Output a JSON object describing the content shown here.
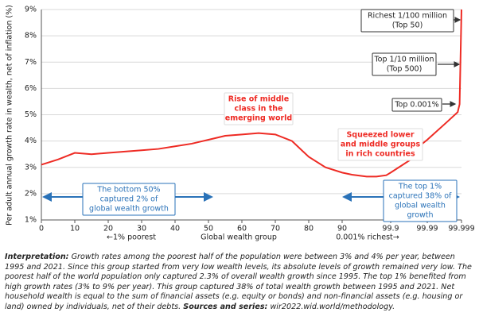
{
  "chart_data": {
    "type": "line",
    "ylabel": "Per adult annual growth rate in wealth, net of inflation (%)",
    "xlabel": "Global wealth group",
    "x_left_label": "←1% poorest",
    "x_right_label": "0.001% richest→",
    "x": [
      0,
      5,
      10,
      15,
      20,
      25,
      30,
      35,
      40,
      45,
      50,
      55,
      60,
      65,
      70,
      75,
      80,
      85,
      90,
      92,
      95,
      97,
      99,
      99.9,
      99.95,
      99.97,
      99.99,
      99.995,
      99.998,
      99.9985,
      99.999
    ],
    "values": [
      3.1,
      3.3,
      3.55,
      3.5,
      3.55,
      3.6,
      3.65,
      3.7,
      3.8,
      3.9,
      4.05,
      4.2,
      4.25,
      4.3,
      4.25,
      4.0,
      3.4,
      3.0,
      2.8,
      2.72,
      2.65,
      2.65,
      2.7,
      2.8,
      3.3,
      3.8,
      4.05,
      4.7,
      5.1,
      5.4,
      9
    ],
    "color": "#ee2b24",
    "ylim": [
      1,
      9
    ],
    "yticks": [
      {
        "value": 1,
        "label": "1%"
      },
      {
        "value": 2,
        "label": "2%"
      },
      {
        "value": 3,
        "label": "3%"
      },
      {
        "value": 4,
        "label": "4%"
      },
      {
        "value": 5,
        "label": "5%"
      },
      {
        "value": 6,
        "label": "6%"
      },
      {
        "value": 7,
        "label": "7%"
      },
      {
        "value": 8,
        "label": "8%"
      },
      {
        "value": 9,
        "label": "9%"
      }
    ],
    "xlim": [
      0,
      99.999
    ],
    "xticks": [
      0,
      10,
      20,
      30,
      40,
      50,
      60,
      70,
      80,
      90,
      99.9,
      99.99,
      99.999
    ],
    "grid": true,
    "annotations": [
      {
        "lines": [
          "Richest 1/100 million",
          "(Top 50)"
        ],
        "color": "#222222"
      },
      {
        "lines": [
          "Top 1/10 million",
          "(Top 500)"
        ],
        "color": "#222222"
      },
      {
        "lines": [
          "Top 0.001%"
        ],
        "color": "#222222"
      },
      {
        "lines": [
          "Rise of middle",
          "class in the",
          "emerging world"
        ],
        "color": "#ee2b24"
      },
      {
        "lines": [
          "Squeezed lower",
          "and middle groups",
          "in rich countries"
        ],
        "color": "#ee2b24"
      },
      {
        "lines": [
          "The bottom 50%",
          "captured 2% of",
          "global wealth growth"
        ],
        "color": "#2a72b8"
      },
      {
        "lines": [
          "The top 1%",
          "captured 38% of",
          "global wealth",
          "growth"
        ],
        "color": "#2a72b8"
      }
    ]
  },
  "note": {
    "interpretation_label": "Interpretation:",
    "interpretation": "Growth rates among the poorest half of the population were between 3% and 4% per year, between 1995 and 2021. Since this group started from very low wealth levels, its absolute levels of growth remained very low. The poorest half of the world population only captured 2.3% of overall wealth growth since 1995. The top 1% benefited from high growth rates (3% to 9% per year). This group captured 38% of total wealth growth between 1995 and 2021. Net household wealth is equal to the sum of financial assets (e.g. equity or bonds) and non-financial assets (e.g. housing or land) owned by individuals, net of their debts.",
    "sources_label": "Sources and series:",
    "sources": "wir2022.wid.world/methodology."
  }
}
